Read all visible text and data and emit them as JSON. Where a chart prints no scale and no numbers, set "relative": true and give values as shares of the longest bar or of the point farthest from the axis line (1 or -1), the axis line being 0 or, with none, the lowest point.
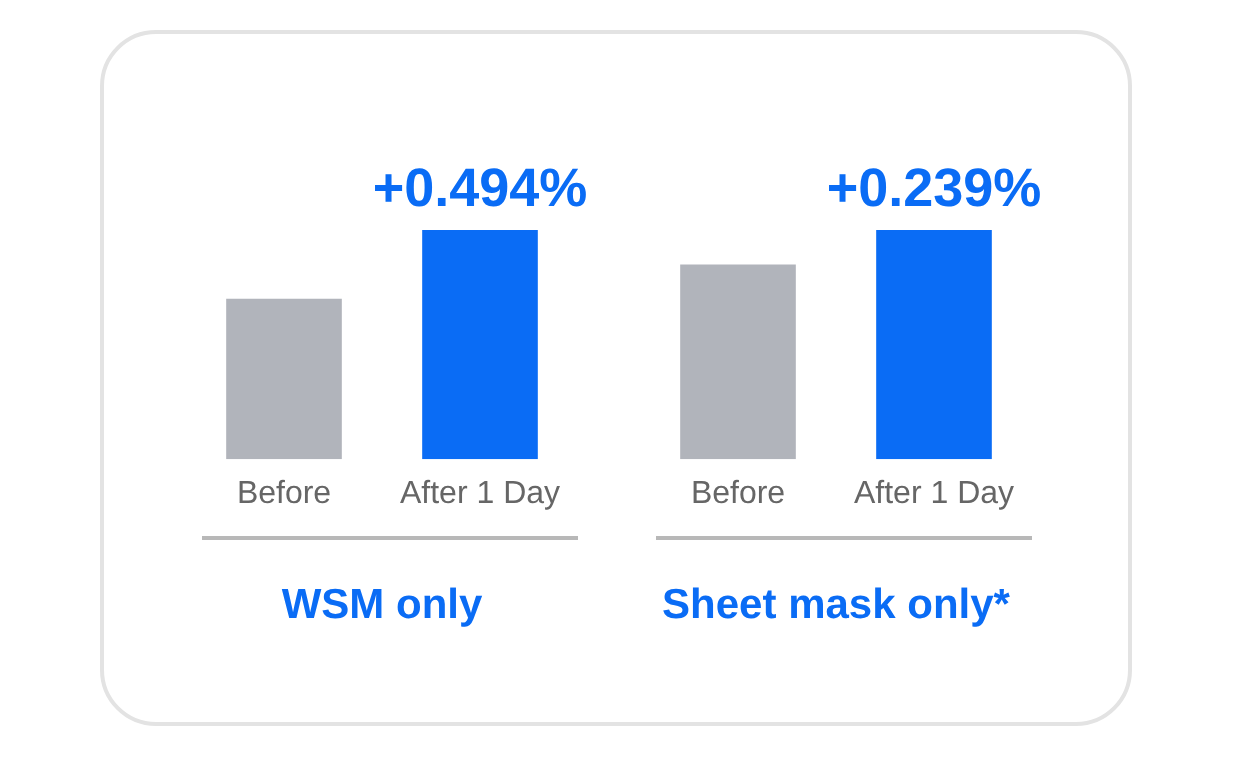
{
  "chart_data": [
    {
      "type": "bar",
      "relative": true,
      "categories": [
        "Before",
        "After 1 Day"
      ],
      "values": [
        0.7,
        1
      ],
      "colors": [
        "#b1b4bb",
        "#0a6cf5"
      ],
      "xlabel": "WSM only",
      "annotations": [
        {
          "text": "+0.494%",
          "x": "After 1 Day",
          "y": 1
        }
      ],
      "legend": false,
      "grid": false
    },
    {
      "type": "bar",
      "relative": true,
      "categories": [
        "Before",
        "After 1 Day"
      ],
      "values": [
        0.85,
        1
      ],
      "colors": [
        "#b1b4bb",
        "#0a6cf5"
      ],
      "xlabel": "Sheet mask only*",
      "annotations": [
        {
          "text": "+0.239%",
          "x": "After 1 Day",
          "y": 1
        }
      ],
      "legend": false,
      "grid": false
    }
  ]
}
